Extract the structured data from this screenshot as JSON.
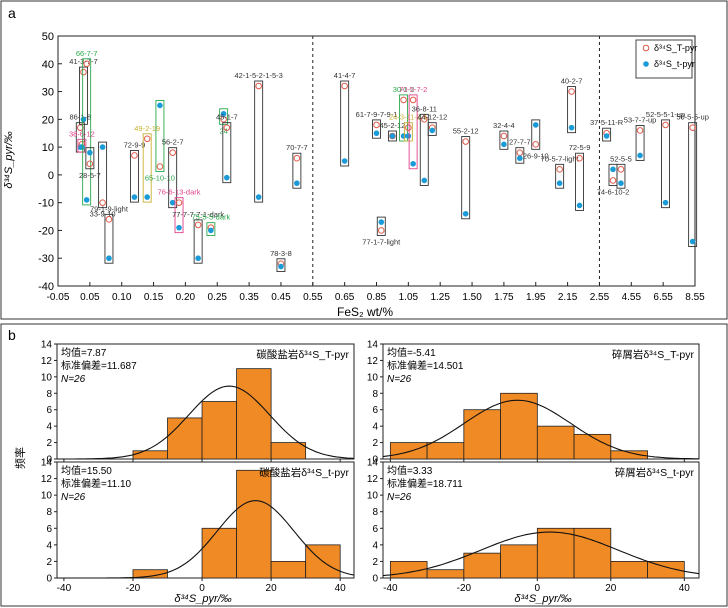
{
  "panel_a": {
    "letter": "a",
    "ylabel": "δ³⁴S_pyr/‰",
    "xlabel": "FeS₂ wt/%",
    "legend": [
      {
        "label": "δ³⁴S_T-pyr",
        "marker": "open-circle",
        "color": "#e05a4a"
      },
      {
        "label": "δ³⁴S_t-pyr",
        "marker": "filled-circle",
        "color": "#1a9bd7"
      }
    ],
    "x_ticks": [
      "-0.05",
      "0.05",
      "0.10",
      "0.15",
      "0.20",
      "0.25",
      "0.35",
      "0.45",
      "0.55",
      "0.65",
      "0.85",
      "1.05",
      "1.25",
      "1.50",
      "1.75",
      "1.95",
      "2.15",
      "2.55",
      "4.55",
      "6.55",
      "8.55"
    ],
    "y_ticks": [
      "-40",
      "-30",
      "-20",
      "-10",
      "0",
      "10",
      "20",
      "30",
      "40",
      "50"
    ],
    "ylim": [
      -40,
      50
    ]
  },
  "panel_b": {
    "letter": "b",
    "ylabel": "频率",
    "xlabel": "δ³⁴S_pyr/‰",
    "x_ticks": [
      "-40",
      "-20",
      "0",
      "20",
      "40"
    ],
    "y_ticks": [
      "0",
      "2",
      "4",
      "6",
      "8",
      "10",
      "12",
      "14"
    ]
  },
  "colors": {
    "open_marker": "#e05a4a",
    "filled_marker": "#1a9bd7",
    "bar_fill": "#f08a24",
    "bar_stroke": "#222222",
    "green_label": "#2aa84a",
    "pink_label": "#e0408a",
    "yellow_label": "#c9b030"
  },
  "chart_data": [
    {
      "type": "scatter",
      "panel": "a",
      "title": "",
      "xlabel": "FeS₂ wt/%",
      "ylabel": "δ³⁴S_pyr/‰",
      "ylim": [
        -40,
        50
      ],
      "x_axis": "piecewise (non-linear) FeS₂ scale, breaks at 0.55 and 2.55",
      "legend_position": "top-right",
      "samples": [
        {
          "name": "86-1-8",
          "color": "default",
          "x": 0.02,
          "T": 17,
          "t": 10
        },
        {
          "name": "41-3-7-7",
          "color": "default",
          "x": 0.03,
          "T": 37,
          "t": 20
        },
        {
          "name": "38-6-12",
          "color": "pink",
          "x": 0.025,
          "T": 11,
          "t": 10
        },
        {
          "name": "66-7-7",
          "color": "green",
          "x": 0.04,
          "T": 40,
          "t": -9
        },
        {
          "name": "28-5-7",
          "color": "default",
          "x": 0.05,
          "T": 4,
          "t": 8
        },
        {
          "name": "33-9-10",
          "color": "default",
          "x": 0.07,
          "T": -10,
          "t": 10
        },
        {
          "name": "79-1-9-light",
          "color": "default",
          "x": 0.08,
          "T": -16,
          "t": -30
        },
        {
          "name": "72-9-9",
          "color": "default",
          "x": 0.12,
          "T": 7,
          "t": -8
        },
        {
          "name": "49-2-19",
          "color": "yellow",
          "x": 0.14,
          "T": 13,
          "t": -8
        },
        {
          "name": "65-10-10",
          "color": "green",
          "x": 0.16,
          "T": 3,
          "t": 25
        },
        {
          "name": "56-2-7",
          "color": "default",
          "x": 0.18,
          "T": 8,
          "t": -10
        },
        {
          "name": "76-6-13-dark",
          "color": "pink",
          "x": 0.19,
          "T": -10,
          "t": -19
        },
        {
          "name": "77-7-7-7-1-dark",
          "color": "default",
          "x": 0.22,
          "T": -18,
          "t": -30
        },
        {
          "name": "75-5-5-dark",
          "color": "green",
          "x": 0.24,
          "T": -19,
          "t": -20
        },
        {
          "name": "24",
          "color": "green",
          "x": 0.27,
          "T": 20,
          "t": 22
        },
        {
          "name": "45-1-7",
          "color": "default",
          "x": 0.28,
          "T": 17,
          "t": -1
        },
        {
          "name": "42-1-5-2-1-5-3",
          "color": "default",
          "x": 0.38,
          "T": 32,
          "t": -8
        },
        {
          "name": "78-3-8",
          "color": "default",
          "x": 0.45,
          "T": -32,
          "t": -33
        },
        {
          "name": "70-7-7",
          "color": "default",
          "x": 0.5,
          "T": 6,
          "t": -3
        },
        {
          "name": "41-4-7",
          "color": "default",
          "x": 0.65,
          "T": 32,
          "t": 5
        },
        {
          "name": "61-7-9-7-9-1",
          "color": "default",
          "x": 0.85,
          "T": 18,
          "t": 15
        },
        {
          "name": "77-1-7-light",
          "color": "default",
          "x": 0.88,
          "T": -20,
          "t": -17
        },
        {
          "name": "45-2-12",
          "color": "default",
          "x": 0.95,
          "T": 14,
          "t": 14
        },
        {
          "name": "30-1-2",
          "color": "green",
          "x": 1.02,
          "T": 27,
          "t": 14
        },
        {
          "name": "24-3-11-2-1",
          "color": "yellow",
          "x": 1.05,
          "T": 17,
          "t": 14
        },
        {
          "name": "70-5-7-2",
          "color": "pink",
          "x": 1.08,
          "T": 27,
          "t": 4
        },
        {
          "name": "36-8-11",
          "color": "default",
          "x": 1.15,
          "T": 20,
          "t": -2
        },
        {
          "name": "44-12-12",
          "color": "default",
          "x": 1.2,
          "T": 17,
          "t": 16
        },
        {
          "name": "55-2-12",
          "color": "default",
          "x": 1.45,
          "T": 12,
          "t": -14
        },
        {
          "name": "32-4-4",
          "color": "default",
          "x": 1.75,
          "T": 14,
          "t": 11
        },
        {
          "name": "27-7-7",
          "color": "default",
          "x": 1.85,
          "T": 8,
          "t": 6
        },
        {
          "name": "26-9-10",
          "color": "default",
          "x": 1.95,
          "T": 11,
          "t": 18
        },
        {
          "name": "40-2-7",
          "color": "default",
          "x": 2.2,
          "T": 30,
          "t": 17
        },
        {
          "name": "70-5-7-light",
          "color": "default",
          "x": 2.1,
          "T": 2,
          "t": -3
        },
        {
          "name": "72-5-9",
          "color": "default",
          "x": 2.3,
          "T": 6,
          "t": -11
        },
        {
          "name": "37-5-11-R",
          "color": "default",
          "x": 3.0,
          "T": 15,
          "t": 14
        },
        {
          "name": "74-6-10-2",
          "color": "default",
          "x": 3.4,
          "T": -2,
          "t": 2
        },
        {
          "name": "52-5-5",
          "color": "default",
          "x": 3.9,
          "T": 2,
          "t": -3
        },
        {
          "name": "53-7-7-up",
          "color": "default",
          "x": 5.1,
          "T": 16,
          "t": 7
        },
        {
          "name": "52-5-5-1-up",
          "color": "default",
          "x": 6.7,
          "T": 18,
          "t": -10
        },
        {
          "name": "50-5-5-up",
          "color": "default",
          "x": 8.4,
          "T": 17,
          "t": -24
        }
      ]
    },
    {
      "type": "bar",
      "panel": "b",
      "subplot": "top-left",
      "title": "碳酸盐岩δ³⁴S_T-pyr",
      "stats": {
        "mean_label": "均值=7.87",
        "sd_label": "标准偏差=11.687",
        "n_label": "N=26"
      },
      "mean": 7.87,
      "sd": 11.687,
      "n": 26,
      "bin_width": 10,
      "xlim": [
        -40,
        40
      ],
      "ylim": [
        0,
        14
      ],
      "bins": [
        {
          "x0": -20,
          "count": 1
        },
        {
          "x0": -10,
          "count": 5
        },
        {
          "x0": 0,
          "count": 7
        },
        {
          "x0": 10,
          "count": 11
        },
        {
          "x0": 20,
          "count": 2
        }
      ]
    },
    {
      "type": "bar",
      "panel": "b",
      "subplot": "top-right",
      "title": "碎屑岩δ³⁴S_T-pyr",
      "stats": {
        "mean_label": "均值=-5.41",
        "sd_label": "标准偏差=14.501",
        "n_label": "N=26"
      },
      "mean": -5.41,
      "sd": 14.501,
      "n": 26,
      "bin_width": 10,
      "xlim": [
        -40,
        40
      ],
      "ylim": [
        0,
        14
      ],
      "bins": [
        {
          "x0": -40,
          "count": 2
        },
        {
          "x0": -30,
          "count": 2
        },
        {
          "x0": -20,
          "count": 6
        },
        {
          "x0": -10,
          "count": 8
        },
        {
          "x0": 0,
          "count": 4
        },
        {
          "x0": 10,
          "count": 3
        },
        {
          "x0": 20,
          "count": 1
        }
      ]
    },
    {
      "type": "bar",
      "panel": "b",
      "subplot": "bottom-left",
      "title": "碳酸盐岩δ³⁴S_t-pyr",
      "stats": {
        "mean_label": "均值=15.50",
        "sd_label": "标准偏差=11.10",
        "n_label": "N=26"
      },
      "mean": 15.5,
      "sd": 11.1,
      "n": 26,
      "bin_width": 10,
      "xlim": [
        -40,
        40
      ],
      "ylim": [
        0,
        14
      ],
      "bins": [
        {
          "x0": -20,
          "count": 1
        },
        {
          "x0": 0,
          "count": 6
        },
        {
          "x0": 10,
          "count": 13
        },
        {
          "x0": 20,
          "count": 2
        },
        {
          "x0": 30,
          "count": 4
        }
      ]
    },
    {
      "type": "bar",
      "panel": "b",
      "subplot": "bottom-right",
      "title": "碎屑岩δ³⁴S_t-pyr",
      "stats": {
        "mean_label": "均值=3.33",
        "sd_label": "标准偏差=18.711",
        "n_label": "N=26"
      },
      "mean": 3.33,
      "sd": 18.711,
      "n": 26,
      "bin_width": 10,
      "xlim": [
        -40,
        40
      ],
      "ylim": [
        0,
        14
      ],
      "bins": [
        {
          "x0": -40,
          "count": 2
        },
        {
          "x0": -30,
          "count": 1
        },
        {
          "x0": -20,
          "count": 3
        },
        {
          "x0": -10,
          "count": 4
        },
        {
          "x0": 0,
          "count": 6
        },
        {
          "x0": 10,
          "count": 6
        },
        {
          "x0": 20,
          "count": 2
        },
        {
          "x0": 30,
          "count": 2
        }
      ]
    }
  ]
}
